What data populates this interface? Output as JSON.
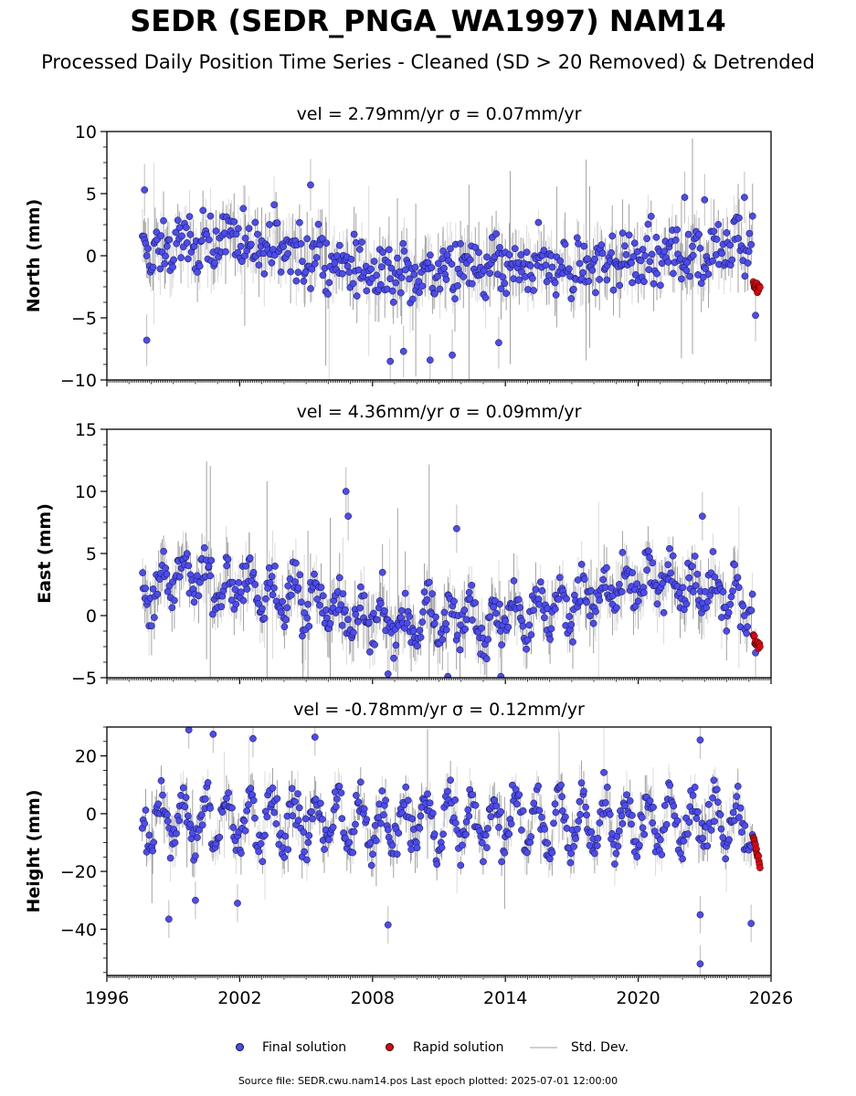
{
  "page": {
    "title": "SEDR (SEDR_PNGA_WA1997) NAM14",
    "subtitle": "Processed Daily Position Time Series - Cleaned (SD > 20 Removed) & Detrended",
    "footer": "Source file: SEDR.cwu.nam14.pos  Last epoch plotted: 2025-07-01 12:00:00"
  },
  "legend": {
    "final_label": "Final solution",
    "rapid_label": "Rapid solution",
    "std_label": "Std. Dev."
  },
  "colors": {
    "final": "#4a4aff",
    "rapid": "#e8000b",
    "std": "#bdbdbd",
    "marker_edge": "#111111"
  },
  "chart_data": [
    {
      "type": "scatter",
      "title": "vel = 2.79mm/yr   σ = 0.07mm/yr",
      "ylabel": "North (mm)",
      "xlim": [
        1996,
        2026
      ],
      "ylim": [
        -10,
        10
      ],
      "x_ticks": [
        1996,
        2002,
        2008,
        2014,
        2020,
        2026
      ],
      "y_ticks": [
        -10,
        -5,
        0,
        5,
        10
      ],
      "x_start": 1997.6,
      "x_end": 2025.15,
      "rapid_x": [
        2025.2,
        2025.5
      ],
      "series": [
        {
          "name": "Final solution",
          "x": [
            1998,
            1999,
            2000,
            2001,
            2002,
            2003,
            2004,
            2005,
            2006,
            2007,
            2008,
            2009,
            2010,
            2011,
            2012,
            2013,
            2014,
            2015,
            2016,
            2017,
            2018,
            2019,
            2020,
            2021,
            2022,
            2023,
            2024,
            2025
          ],
          "values": [
            0.0,
            0.5,
            1.0,
            1.0,
            1.2,
            1.0,
            0.5,
            0.0,
            -0.5,
            -1.0,
            -1.2,
            -1.5,
            -1.5,
            -1.2,
            -1.0,
            -1.0,
            -1.2,
            -1.2,
            -1.0,
            -1.0,
            -0.8,
            -0.5,
            -0.3,
            0.0,
            0.0,
            0.5,
            0.8,
            1.0
          ],
          "spread": 1.6
        },
        {
          "name": "Rapid solution",
          "x": [
            2025.2,
            2025.5
          ],
          "values": [
            -2.2,
            -2.8
          ]
        }
      ],
      "outliers": [
        [
          1997.7,
          5.3
        ],
        [
          1997.8,
          -6.8
        ],
        [
          2005.2,
          5.7
        ],
        [
          2008.8,
          -8.5
        ],
        [
          2009.4,
          -7.7
        ],
        [
          2010.6,
          -8.4
        ],
        [
          2011.6,
          -8.0
        ],
        [
          2013.7,
          -7.0
        ],
        [
          2022.1,
          4.7
        ],
        [
          2023.0,
          4.5
        ],
        [
          2024.8,
          4.7
        ],
        [
          2025.3,
          -4.8
        ]
      ],
      "sd": {
        "typical": 1.6,
        "max": 7
      }
    },
    {
      "type": "scatter",
      "title": "vel = 4.36mm/yr   σ = 0.09mm/yr",
      "ylabel": "East (mm)",
      "xlim": [
        1996,
        2026
      ],
      "ylim": [
        -5,
        15
      ],
      "x_ticks": [
        1996,
        2002,
        2008,
        2014,
        2020,
        2026
      ],
      "y_ticks": [
        -5,
        0,
        5,
        10,
        15
      ],
      "x_start": 1997.6,
      "x_end": 2025.15,
      "rapid_x": [
        2025.2,
        2025.5
      ],
      "series": [
        {
          "name": "Final solution",
          "x": [
            1998,
            1999,
            2000,
            2001,
            2002,
            2003,
            2004,
            2005,
            2006,
            2007,
            2008,
            2009,
            2010,
            2011,
            2012,
            2013,
            2014,
            2015,
            2016,
            2017,
            2018,
            2019,
            2020,
            2021,
            2022,
            2023,
            2024,
            2025
          ],
          "values": [
            2.0,
            3.5,
            3.0,
            2.5,
            2.5,
            2.0,
            1.5,
            1.0,
            1.0,
            0.0,
            -0.5,
            -0.5,
            -0.5,
            0.0,
            0.0,
            -0.5,
            0.0,
            0.5,
            0.5,
            1.0,
            1.5,
            2.0,
            2.5,
            3.0,
            2.5,
            2.0,
            1.5,
            1.0
          ],
          "spread": 1.2
        },
        {
          "name": "Rapid solution",
          "x": [
            2025.2,
            2025.5
          ],
          "values": [
            -1.8,
            -2.6
          ]
        }
      ],
      "outliers": [
        [
          2006.8,
          10.0
        ],
        [
          2006.9,
          8.0
        ],
        [
          2011.8,
          7.0
        ],
        [
          2022.9,
          8.0
        ],
        [
          2008.7,
          -4.7
        ],
        [
          2011.4,
          -4.9
        ],
        [
          2013.8,
          -4.9
        ],
        [
          2025.3,
          -3.0
        ]
      ],
      "sd": {
        "typical": 1.5,
        "max": 8
      }
    },
    {
      "type": "scatter",
      "title": "vel = -0.78mm/yr   σ = 0.12mm/yr",
      "ylabel": "Height (mm)",
      "xlim": [
        1996,
        2026
      ],
      "ylim": [
        -56,
        30
      ],
      "x_ticks": [
        1996,
        2002,
        2008,
        2014,
        2020,
        2026
      ],
      "y_ticks": [
        -40,
        -20,
        0,
        20
      ],
      "x_start": 1997.6,
      "x_end": 2025.15,
      "rapid_x": [
        2025.2,
        2025.5
      ],
      "series": [
        {
          "name": "Final solution",
          "x": [
            1998,
            1999,
            2000,
            2001,
            2002,
            2003,
            2004,
            2005,
            2006,
            2007,
            2008,
            2009,
            2010,
            2011,
            2012,
            2013,
            2014,
            2015,
            2016,
            2017,
            2018,
            2019,
            2020,
            2021,
            2022,
            2023,
            2024,
            2025
          ],
          "values": [
            -3,
            -3,
            -3,
            -3,
            -3,
            -3,
            -3,
            -3,
            -3,
            -3,
            -3,
            -3,
            -3,
            -3,
            -3,
            -3,
            -3,
            -3,
            -3,
            -3,
            -3,
            -3,
            -3,
            -3,
            -3,
            -3,
            -3,
            -3
          ],
          "spread": 5
        },
        {
          "name": "Rapid solution",
          "x": [
            2025.2,
            2025.5
          ],
          "values": [
            -9,
            -18
          ]
        }
      ],
      "outliers": [
        [
          1999.7,
          29.0
        ],
        [
          2000.8,
          27.5
        ],
        [
          2002.6,
          26.0
        ],
        [
          2005.4,
          26.5
        ],
        [
          2022.8,
          25.5
        ],
        [
          1998.8,
          -36.5
        ],
        [
          2000.0,
          -30.0
        ],
        [
          2001.9,
          -31.0
        ],
        [
          2008.7,
          -38.5
        ],
        [
          2022.8,
          -52.0
        ],
        [
          2022.8,
          -35.0
        ],
        [
          2025.1,
          -38.0
        ]
      ],
      "sd": {
        "typical": 5,
        "max": 16
      }
    }
  ]
}
